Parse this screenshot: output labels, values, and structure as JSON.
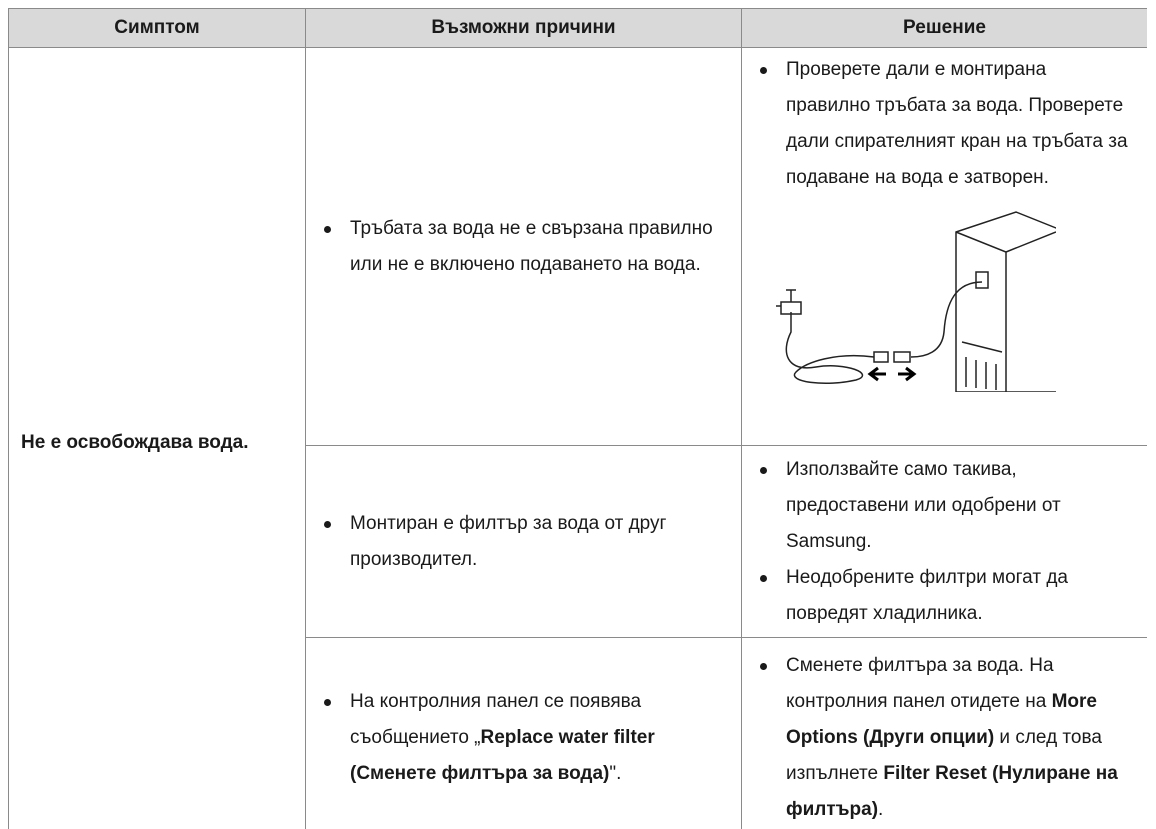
{
  "table": {
    "header": [
      "Симптом",
      "Възможни причини",
      "Решение"
    ],
    "symptom": "Не е освобождава вода.",
    "rows": [
      {
        "causes": [
          [
            {
              "text": "Тръбата за вода не е свързана правилно или не е включено подаването на вода.",
              "bold": false
            }
          ]
        ],
        "solutions": [
          [
            {
              "text": "Проверете дали е монтирана правилно тръбата за вода. Проверете дали спирателният кран на тръбата за подаване на вода е затворен.",
              "bold": false
            }
          ]
        ]
      },
      {
        "causes": [
          [
            {
              "text": "Монтиран е филтър за вода от друг производител.",
              "bold": false
            }
          ]
        ],
        "solutions": [
          [
            {
              "text": "Използвайте само такива, предоставени или одобрени от Samsung.",
              "bold": false
            }
          ],
          [
            {
              "text": "Неодобрените филтри могат да повредят хладилника.",
              "bold": false
            }
          ]
        ]
      },
      {
        "causes": [
          [
            {
              "text": "На контролния панел се появява съобщението „",
              "bold": false
            },
            {
              "text": "Replace water filter (Сменете филтъра за вода)",
              "bold": true
            },
            {
              "text": "\".",
              "bold": false
            }
          ]
        ],
        "solutions": [
          [
            {
              "text": "Сменете филтъра за вода. На контролния панел отидете на ",
              "bold": false
            },
            {
              "text": "More Options (Други опции)",
              "bold": true
            },
            {
              "text": " и след това изпълнете ",
              "bold": false
            },
            {
              "text": "Filter Reset (Нулиране на филтъра)",
              "bold": true
            },
            {
              "text": ".",
              "bold": false
            }
          ]
        ]
      }
    ]
  }
}
